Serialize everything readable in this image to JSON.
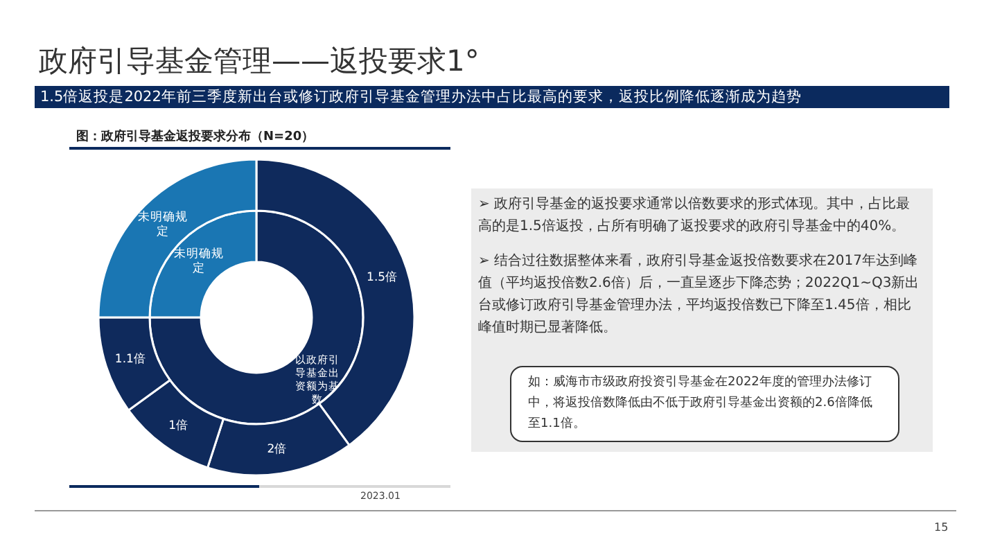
{
  "chart_data": [
    {
      "type": "donut",
      "title": "政府引导基金管理——返投要求1°",
      "subtitle": "1.5倍返投是2022年前三季度新出台或修订政府引导基金管理办法中占比最高的要求，返投比例降低逐渐成为趋势",
      "xlabel": "图：政府引导基金返投要求分布（N=20）",
      "categories": [
        "以政府引导基金出资额为基数",
        "未明确规定"
      ],
      "values": [
        75,
        25
      ],
      "colors": [
        "#0f2a5c",
        "#1a76b3"
      ],
      "annotations": [
        "➢ 政府引导基金的返投要求通常以倍数要求的形式体现。其中，占比最高的是1.5倍返投，占所有明确了返投要求的政府引导基金中的40%。",
        "➢ 结合过往数据整体来看，政府引导基金返投倍数要求在2017年达到峰值（平均返投倍数2.6倍）后，一直呈逐步下降态势；2022Q1~Q3新出台或修订政府引导基金管理办法，平均返投倍数已下降至1.45倍，相比峰值时期已显著降低。",
        "如：威海市市级政府投资引导基金在2022年度的管理办法修订中，将返投倍数降低由不低于政府引导基金出资额的2.6倍降低至1.1倍。",
        "2023.01",
        "15"
      ]
    },
    {
      "type": "donut",
      "categories": [
        "1.5倍",
        "2倍",
        "1倍",
        "1.1倍",
        "未明确规定"
      ],
      "values": [
        40,
        15,
        10,
        10,
        25
      ],
      "colors": [
        "#0f2a5c",
        "#0f2a5c",
        "#0f2a5c",
        "#0f2a5c",
        "#1a76b3"
      ]
    }
  ]
}
